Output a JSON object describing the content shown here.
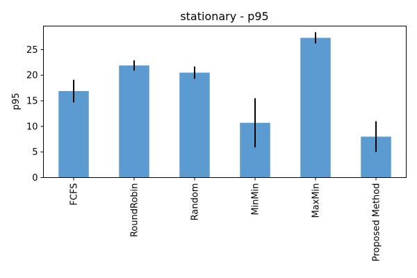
{
  "chart_data": {
    "type": "bar",
    "title": "stationary - p95",
    "xlabel": "",
    "ylabel": "p95",
    "categories": [
      "FCFS",
      "RoundRobin",
      "Random",
      "MinMin",
      "MaxMin",
      "Proposed Method"
    ],
    "series": [
      {
        "values": [
          16.9,
          21.9,
          20.5,
          10.7,
          27.3,
          8.0
        ],
        "error": [
          2.2,
          1.0,
          1.2,
          4.8,
          1.1,
          3.0
        ]
      }
    ],
    "ylim": [
      0,
      29.6
    ],
    "yticks": [
      0,
      5,
      10,
      15,
      20,
      25
    ],
    "grid": false,
    "legend": "none",
    "colors": {
      "bar": "#5b9bd0",
      "error": "#000000"
    }
  }
}
